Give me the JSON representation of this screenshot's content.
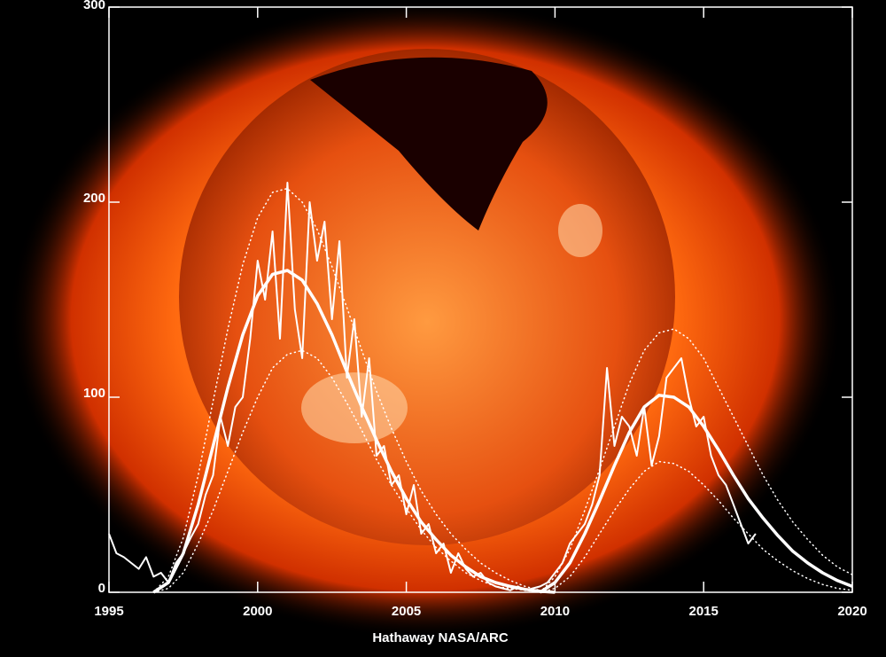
{
  "chart_data": {
    "type": "line",
    "footer": "Hathaway  NASA/ARC",
    "xlim": [
      1995,
      2020
    ],
    "xticks": [
      1995,
      2000,
      2005,
      2010,
      2015,
      2020
    ],
    "ylim": [
      0,
      300
    ],
    "yticks": [
      0,
      100,
      200,
      300
    ],
    "series": [
      {
        "color": "#ffffff",
        "width": 2,
        "style": "solid",
        "x": [
          1995.0,
          1995.25,
          1995.5,
          1995.75,
          1996.0,
          1996.25,
          1996.5,
          1996.75,
          1997.0,
          1997.25,
          1997.5,
          1997.75,
          1998.0,
          1998.25,
          1998.5,
          1998.75,
          1999.0,
          1999.25,
          1999.5,
          1999.75,
          2000.0,
          2000.25,
          2000.5,
          2000.75,
          2001.0,
          2001.25,
          2001.5,
          2001.75,
          2002.0,
          2002.25,
          2002.5,
          2002.75,
          2003.0,
          2003.25,
          2003.5,
          2003.75,
          2004.0,
          2004.25,
          2004.5,
          2004.75,
          2005.0,
          2005.25,
          2005.5,
          2005.75,
          2006.0,
          2006.25,
          2006.5,
          2006.75,
          2007.0,
          2007.25,
          2007.5,
          2007.75,
          2008.0,
          2008.25,
          2008.5,
          2008.75,
          2009.0,
          2009.25,
          2009.5,
          2009.75,
          2010.0,
          2010.25,
          2010.5,
          2010.75,
          2011.0,
          2011.25,
          2011.5,
          2011.75,
          2012.0,
          2012.25,
          2012.5,
          2012.75,
          2013.0,
          2013.25,
          2013.5,
          2013.75,
          2014.0,
          2014.25,
          2014.5,
          2014.75,
          2015.0,
          2015.25,
          2015.5,
          2015.75,
          2016.0,
          2016.25,
          2016.5,
          2016.75
        ],
        "values": [
          30,
          20,
          18,
          15,
          12,
          18,
          8,
          10,
          5,
          15,
          20,
          28,
          35,
          50,
          60,
          90,
          75,
          95,
          100,
          130,
          170,
          150,
          185,
          130,
          210,
          145,
          120,
          200,
          170,
          190,
          140,
          180,
          110,
          140,
          90,
          120,
          70,
          75,
          55,
          60,
          40,
          55,
          30,
          35,
          20,
          25,
          10,
          20,
          12,
          8,
          10,
          5,
          3,
          2,
          1,
          3,
          1,
          2,
          3,
          5,
          10,
          15,
          25,
          30,
          35,
          45,
          60,
          115,
          75,
          90,
          85,
          70,
          95,
          65,
          80,
          110,
          115,
          120,
          100,
          85,
          90,
          70,
          60,
          55,
          45,
          35,
          25,
          30
        ]
      },
      {
        "color": "#ffffff",
        "width": 3.5,
        "style": "solid",
        "x": [
          1996.5,
          1997,
          1997.5,
          1998,
          1998.5,
          1999,
          1999.5,
          2000,
          2000.5,
          2001,
          2001.5,
          2002,
          2002.5,
          2003,
          2003.5,
          2004,
          2004.5,
          2005,
          2005.5,
          2006,
          2006.5,
          2007,
          2007.5,
          2008,
          2008.5,
          2009,
          2009.5,
          2010
        ],
        "values": [
          0,
          5,
          20,
          45,
          75,
          105,
          132,
          152,
          163,
          165,
          160,
          148,
          132,
          113,
          95,
          78,
          62,
          48,
          36,
          27,
          19,
          13,
          8,
          5,
          3,
          1.5,
          0.5,
          0
        ]
      },
      {
        "color": "#ffffff",
        "width": 3.5,
        "style": "solid",
        "x": [
          2009.5,
          2010,
          2010.5,
          2011,
          2011.5,
          2012,
          2012.5,
          2013,
          2013.5,
          2014,
          2014.5,
          2015,
          2015.5,
          2016,
          2016.5,
          2017,
          2017.5,
          2018,
          2018.5,
          2019,
          2019.5,
          2020
        ],
        "values": [
          0,
          5,
          15,
          30,
          47,
          65,
          82,
          95,
          101,
          100,
          95,
          85,
          73,
          60,
          48,
          38,
          29,
          21,
          15,
          10,
          6,
          3
        ]
      },
      {
        "color": "#ffffff",
        "width": 1.5,
        "style": "dotted",
        "x": [
          1996.5,
          1997,
          1997.5,
          1998,
          1998.5,
          1999,
          1999.5,
          2000,
          2000.5,
          2001,
          2001.5,
          2002,
          2002.5,
          2003,
          2003.5,
          2004,
          2004.5,
          2005,
          2005.5,
          2006,
          2006.5,
          2007,
          2007.5,
          2008,
          2008.5,
          2009,
          2009.5,
          2010
        ],
        "values": [
          0,
          8,
          28,
          60,
          98,
          135,
          168,
          192,
          205,
          207,
          200,
          186,
          167,
          146,
          124,
          103,
          84,
          67,
          52,
          40,
          30,
          22,
          15,
          10,
          6,
          3,
          1,
          0
        ]
      },
      {
        "color": "#ffffff",
        "width": 1.5,
        "style": "dotted",
        "x": [
          1996.5,
          1997,
          1997.5,
          1998,
          1998.5,
          1999,
          1999.5,
          2000,
          2000.5,
          2001,
          2001.5,
          2002,
          2002.5,
          2003,
          2003.5,
          2004,
          2004.5,
          2005,
          2005.5,
          2006,
          2006.5,
          2007,
          2007.5,
          2008,
          2008.5,
          2009,
          2009.5,
          2010
        ],
        "values": [
          0,
          2,
          10,
          25,
          42,
          62,
          82,
          100,
          115,
          122,
          124,
          120,
          110,
          97,
          83,
          68,
          55,
          43,
          32,
          23,
          16,
          10,
          6,
          3,
          2,
          1,
          0,
          0
        ]
      },
      {
        "color": "#ffffff",
        "width": 1.5,
        "style": "dotted",
        "x": [
          2009.5,
          2010,
          2010.5,
          2011,
          2011.5,
          2012,
          2012.5,
          2013,
          2013.5,
          2014,
          2014.5,
          2015,
          2015.5,
          2016,
          2016.5,
          2017,
          2017.5,
          2018,
          2018.5,
          2019,
          2019.5,
          2020
        ],
        "values": [
          0,
          8,
          22,
          42,
          63,
          85,
          107,
          124,
          133,
          135,
          130,
          120,
          105,
          90,
          75,
          60,
          47,
          36,
          27,
          19,
          13,
          9
        ]
      },
      {
        "color": "#ffffff",
        "width": 1.5,
        "style": "dotted",
        "x": [
          2009.5,
          2010,
          2010.5,
          2011,
          2011.5,
          2012,
          2012.5,
          2013,
          2013.5,
          2014,
          2014.5,
          2015,
          2015.5,
          2016,
          2016.5,
          2017,
          2017.5,
          2018,
          2018.5,
          2019,
          2019.5,
          2020
        ],
        "values": [
          0,
          2,
          8,
          18,
          30,
          42,
          53,
          62,
          67,
          66,
          62,
          55,
          47,
          38,
          30,
          22,
          16,
          11,
          7,
          4,
          2,
          1
        ]
      }
    ]
  }
}
